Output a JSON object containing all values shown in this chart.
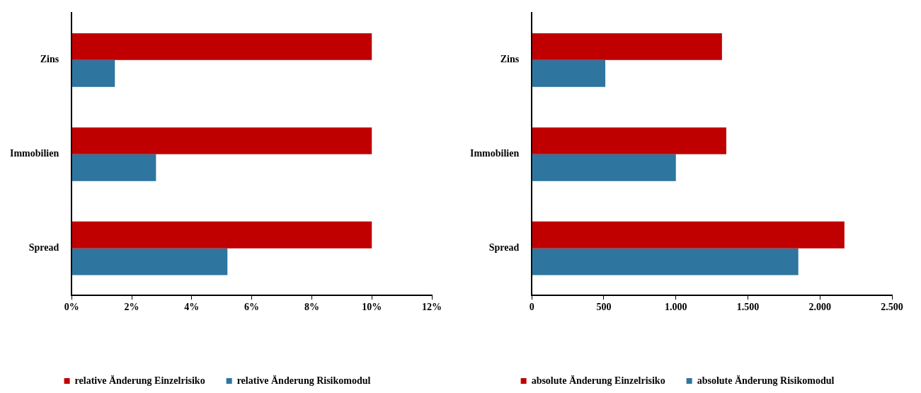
{
  "chart_data": [
    {
      "type": "bar",
      "orientation": "horizontal",
      "categories": [
        "Zins",
        "Immobilien",
        "Spread"
      ],
      "series": [
        {
          "name": "relative Änderung Einzelrisiko",
          "color": "#c00000",
          "values": [
            10,
            10,
            10
          ]
        },
        {
          "name": "relative Änderung Risikomodul",
          "color": "#2e75a0",
          "values": [
            1.44,
            2.81,
            5.19
          ]
        }
      ],
      "xlim": [
        0,
        12
      ],
      "xticks": [
        {
          "value": 0,
          "label": "0%"
        },
        {
          "value": 2,
          "label": "2%"
        },
        {
          "value": 4,
          "label": "4%"
        },
        {
          "value": 6,
          "label": "6%"
        },
        {
          "value": 8,
          "label": "8%"
        },
        {
          "value": 10,
          "label": "10%"
        },
        {
          "value": 12,
          "label": "12%"
        }
      ],
      "grid": false,
      "legend": "bottom"
    },
    {
      "type": "bar",
      "orientation": "horizontal",
      "categories": [
        "Zins",
        "Immobilien",
        "Spread"
      ],
      "series": [
        {
          "name": "absolute Änderung Einzelrisiko",
          "color": "#c00000",
          "values": [
            1320,
            1350,
            2170
          ]
        },
        {
          "name": "absolute Änderung Risikomodul",
          "color": "#2e75a0",
          "values": [
            510,
            1000,
            1850
          ]
        }
      ],
      "xlim": [
        0,
        2500
      ],
      "xticks": [
        {
          "value": 0,
          "label": "0"
        },
        {
          "value": 500,
          "label": "500"
        },
        {
          "value": 1000,
          "label": "1.000"
        },
        {
          "value": 1500,
          "label": "1.500"
        },
        {
          "value": 2000,
          "label": "2.000"
        },
        {
          "value": 2500,
          "label": "2.500"
        }
      ],
      "grid": false,
      "legend": "bottom"
    }
  ]
}
